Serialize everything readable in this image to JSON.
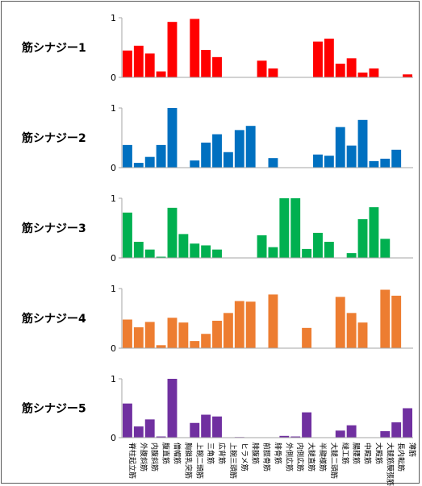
{
  "chart_data": {
    "type": "bar",
    "layout": "small-multiples",
    "categories": [
      "脊柱起立筋",
      "外腹斜筋",
      "内腹斜筋",
      "腹直筋",
      "僧帽筋",
      "胸鎖乳突筋",
      "上腕二頭筋",
      "三角筋",
      "広背筋",
      "上腕三頭筋",
      "ヒラメ筋",
      "腓腹筋",
      "前脛骨筋",
      "腓骨筋",
      "外側広筋",
      "内側広筋",
      "大腿直筋",
      "半腱様筋",
      "大腿二頭筋",
      "縫工筋",
      "腸腰筋",
      "中殿筋",
      "大殿筋",
      "大腿筋膜張筋",
      "長内転筋",
      "薄筋"
    ],
    "ylim": [
      0,
      1
    ],
    "yticks": [
      "0",
      "1"
    ],
    "panels": [
      {
        "title": "筋シナジー1",
        "color": "#ff0000",
        "values": [
          0.45,
          0.53,
          0.4,
          0.1,
          0.93,
          0,
          0.98,
          0.46,
          0.34,
          0,
          0,
          0,
          0.28,
          0.15,
          0,
          0,
          0,
          0.6,
          0.65,
          0.23,
          0.32,
          0.08,
          0.15,
          0,
          0,
          0.05
        ]
      },
      {
        "title": "筋シナジー2",
        "color": "#0070c0",
        "values": [
          0.38,
          0.08,
          0.18,
          0.38,
          1.0,
          0,
          0.12,
          0.42,
          0.56,
          0.26,
          0.63,
          0.7,
          0,
          0.16,
          0,
          0,
          0,
          0.22,
          0.2,
          0.68,
          0.37,
          0.8,
          0.11,
          0.15,
          0.3,
          0
        ]
      },
      {
        "title": "筋シナジー3",
        "color": "#00b050",
        "values": [
          0.76,
          0.27,
          0.14,
          0.02,
          0.84,
          0.4,
          0.24,
          0.21,
          0.14,
          0,
          0,
          0,
          0.38,
          0.18,
          1.0,
          1.0,
          0.15,
          0.42,
          0.27,
          0,
          0.08,
          0.65,
          0.85,
          0.32,
          0,
          0
        ]
      },
      {
        "title": "筋シナジー4",
        "color": "#ed7d31",
        "values": [
          0.48,
          0.35,
          0.44,
          0.05,
          0.51,
          0.43,
          0.12,
          0.24,
          0.46,
          0.59,
          0.79,
          0.78,
          0,
          0.9,
          0,
          0,
          0.34,
          0,
          0,
          0.86,
          0.59,
          0.43,
          0,
          0.98,
          0.88,
          0
        ]
      },
      {
        "title": "筋シナジー5",
        "color": "#7030a0",
        "values": [
          0.58,
          0.19,
          0.31,
          0.02,
          1.0,
          0,
          0.25,
          0.39,
          0.36,
          0,
          0.01,
          0,
          0,
          0,
          0.03,
          0.02,
          0.43,
          0,
          0,
          0.12,
          0.21,
          0,
          0,
          0.11,
          0.26,
          0.5
        ]
      }
    ]
  }
}
